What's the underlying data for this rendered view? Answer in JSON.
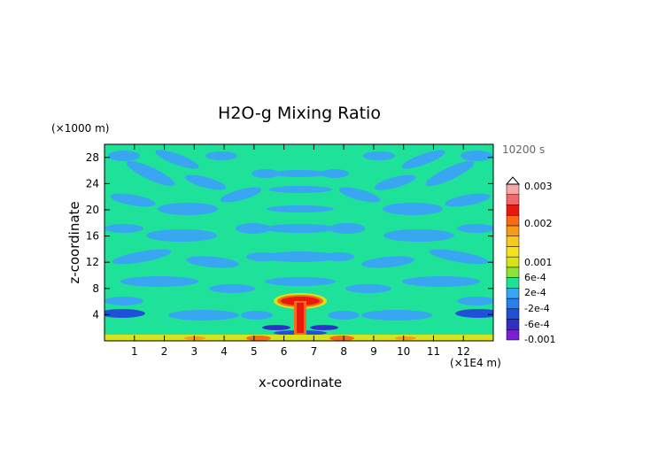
{
  "chart_data": {
    "type": "heatmap",
    "title": "H2O-g Mixing Ratio",
    "xlabel": "x-coordinate",
    "ylabel": "z-coordinate",
    "x_unit_label": "(×1E4 m)",
    "y_unit_label": "(×1000 m)",
    "time_label": "10200 s",
    "xlim": [
      0,
      13
    ],
    "ylim": [
      0,
      30
    ],
    "x_ticks": [
      "1",
      "2",
      "3",
      "4",
      "5",
      "6",
      "7",
      "8",
      "9",
      "10",
      "11",
      "12"
    ],
    "y_ticks": [
      "4",
      "8",
      "12",
      "16",
      "20",
      "24",
      "28"
    ],
    "colorbar": {
      "levels": [
        {
          "value": -0.001,
          "color": "#7b1fd6"
        },
        {
          "value": -0.0008,
          "color": "#3030c8"
        },
        {
          "value": -0.0006,
          "color": "#2050d8"
        },
        {
          "value": -0.0004,
          "color": "#2c7ee8"
        },
        {
          "value": -0.0002,
          "color": "#38a6f0"
        },
        {
          "value": 0.0,
          "color": "#1fe29a"
        },
        {
          "value": 0.0002,
          "color": "#8ee23a"
        },
        {
          "value": 0.0004,
          "color": "#d8e21a"
        },
        {
          "value": 0.0006,
          "color": "#f6e21c"
        },
        {
          "value": 0.0008,
          "color": "#f8c81c"
        },
        {
          "value": 0.001,
          "color": "#f89a1c"
        },
        {
          "value": 0.0015,
          "color": "#f86a16"
        },
        {
          "value": 0.002,
          "color": "#e81a10"
        },
        {
          "value": 0.0025,
          "color": "#f06868"
        },
        {
          "value": 0.003,
          "color": "#f4a8a8"
        }
      ],
      "tick_labels": [
        "0.003",
        "0.002",
        "0.001",
        "6e-4",
        "2e-4",
        "-2e-4",
        "-6e-4",
        "-0.001"
      ]
    }
  }
}
